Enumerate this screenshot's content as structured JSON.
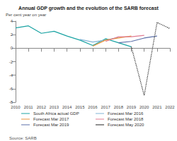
{
  "chart_data": {
    "type": "line",
    "title": "Annual GDP growth and the evolution of the SARB forecast",
    "y_label": "Per cent year on year",
    "source": "Source: SARB",
    "categories": [
      "2010",
      "2011",
      "2012",
      "2013",
      "2014",
      "2015",
      "2016",
      "2017",
      "2018",
      "2019",
      "2020",
      "2021",
      "2022"
    ],
    "ylim": [
      -8,
      4
    ],
    "yticks": [
      -8,
      -6,
      -4,
      -2,
      0,
      2,
      4
    ],
    "grid": false,
    "legend": "bottom",
    "series": [
      {
        "name": "South Africa actual GDP",
        "color": "#1aa3a3",
        "line_style": "solid",
        "values": [
          3.0,
          3.3,
          2.2,
          2.5,
          1.8,
          1.2,
          0.4,
          1.4,
          0.8,
          0.2,
          null,
          null,
          null
        ]
      },
      {
        "name": "Forecast Mar 2016",
        "color": "#7fb3d5",
        "line_style": "solid",
        "values": [
          null,
          null,
          null,
          null,
          null,
          1.3,
          0.9,
          1.2,
          1.6,
          null,
          null,
          null,
          null
        ]
      },
      {
        "name": "Forecast Mar 2017",
        "color": "#e8923a",
        "line_style": "solid",
        "values": [
          null,
          null,
          null,
          null,
          null,
          null,
          0.3,
          1.2,
          1.5,
          1.8,
          null,
          null,
          null
        ]
      },
      {
        "name": "Forecast Mar 2018",
        "color": "#e07b91",
        "line_style": "solid",
        "values": [
          null,
          null,
          null,
          null,
          null,
          null,
          null,
          1.0,
          1.7,
          1.7,
          1.9,
          null,
          null
        ]
      },
      {
        "name": "Forecast Mar 2019",
        "color": "#5b6fa8",
        "line_style": "solid",
        "values": [
          null,
          null,
          null,
          null,
          null,
          null,
          null,
          null,
          0.8,
          1.0,
          1.5,
          1.8,
          null
        ]
      },
      {
        "name": "Forecast May 2020",
        "color": "#222222",
        "line_style": "dotted",
        "values": [
          null,
          null,
          null,
          null,
          null,
          null,
          null,
          null,
          null,
          0.2,
          -7.0,
          3.8,
          2.9
        ]
      }
    ]
  }
}
